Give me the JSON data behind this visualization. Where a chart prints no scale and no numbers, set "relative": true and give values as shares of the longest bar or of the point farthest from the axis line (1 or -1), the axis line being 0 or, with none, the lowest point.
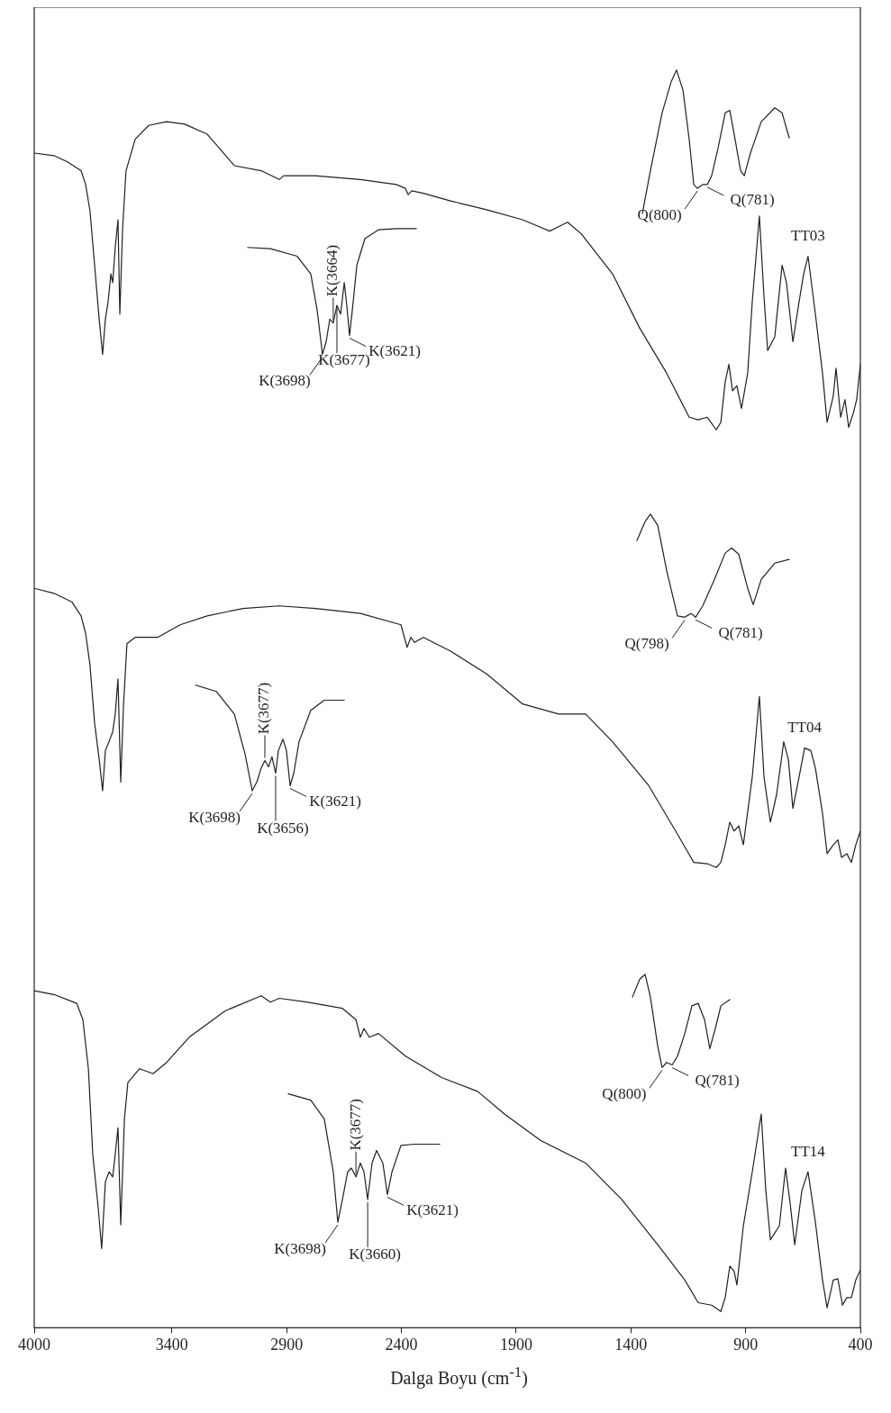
{
  "chart_data": {
    "type": "line",
    "relative": true,
    "xlabel": "Dalga Boyu (cm$^{-1}$)",
    "xlim": [
      4000,
      400
    ],
    "xticks": [
      4000,
      3400,
      2900,
      2400,
      1900,
      1400,
      900,
      400
    ],
    "grid": false,
    "legend": false,
    "marker": "none",
    "line_style": "solid",
    "series": [
      {
        "name": "TT03",
        "color": "#231f20",
        "x": [
          4000,
          3914,
          3855,
          3796,
          3776,
          3757,
          3737,
          3717,
          3702,
          3690,
          3678,
          3666,
          3658,
          3647,
          3635,
          3627,
          3615,
          3600,
          3560,
          3501,
          3423,
          3344,
          3246,
          3128,
          3011,
          2932,
          2913,
          2854,
          2775,
          2579,
          2422,
          2383,
          2371,
          2355,
          2304,
          2186,
          2029,
          1872,
          1754,
          1676,
          1617,
          1480,
          1362,
          1244,
          1146,
          1107,
          1067,
          1028,
          1008,
          989,
          973,
          957,
          938,
          918,
          891,
          871,
          840,
          820,
          804,
          773,
          741,
          722,
          694,
          667,
          647,
          628,
          596,
          565,
          545,
          518,
          506,
          486,
          467,
          451,
          431,
          416,
          400
        ],
        "values": [
          0.934,
          0.932,
          0.927,
          0.92,
          0.909,
          0.888,
          0.845,
          0.802,
          0.774,
          0.802,
          0.816,
          0.838,
          0.831,
          0.859,
          0.881,
          0.806,
          0.874,
          0.92,
          0.945,
          0.956,
          0.959,
          0.957,
          0.949,
          0.924,
          0.92,
          0.913,
          0.916,
          0.916,
          0.916,
          0.913,
          0.909,
          0.906,
          0.901,
          0.904,
          0.902,
          0.896,
          0.889,
          0.881,
          0.872,
          0.879,
          0.87,
          0.838,
          0.795,
          0.759,
          0.724,
          0.722,
          0.724,
          0.714,
          0.72,
          0.752,
          0.766,
          0.745,
          0.749,
          0.731,
          0.759,
          0.816,
          0.884,
          0.82,
          0.777,
          0.788,
          0.845,
          0.831,
          0.784,
          0.816,
          0.838,
          0.852,
          0.806,
          0.759,
          0.72,
          0.741,
          0.763,
          0.724,
          0.738,
          0.716,
          0.727,
          0.738,
          0.766
        ]
      },
      {
        "color": "#231f20",
        "x": [
          1350,
          1315,
          1264,
          1224,
          1201,
          1173,
          1146,
          1126,
          1110,
          1087,
          1067,
          1048,
          1020,
          989,
          969,
          946,
          922,
          906,
          879,
          832,
          773,
          741,
          710
        ],
        "values": [
          0.886,
          0.92,
          0.966,
          0.991,
          1.0,
          0.984,
          0.945,
          0.909,
          0.906,
          0.909,
          0.909,
          0.916,
          0.938,
          0.966,
          0.968,
          0.945,
          0.92,
          0.916,
          0.934,
          0.959,
          0.97,
          0.966,
          0.946
        ]
      },
      {
        "color": "#231f20",
        "x": [
          3070,
          2971,
          2854,
          2795,
          2767,
          2744,
          2728,
          2712,
          2697,
          2681,
          2665,
          2649,
          2638,
          2626,
          2614,
          2594,
          2559,
          2500,
          2422,
          2335
        ],
        "values": [
          0.859,
          0.858,
          0.852,
          0.838,
          0.809,
          0.774,
          0.784,
          0.802,
          0.799,
          0.813,
          0.806,
          0.831,
          0.813,
          0.789,
          0.809,
          0.845,
          0.866,
          0.873,
          0.874,
          0.874
        ]
      },
      {
        "name": "TT04",
        "color": "#231f20",
        "x": [
          4000,
          3914,
          3835,
          3796,
          3776,
          3757,
          3737,
          3717,
          3702,
          3690,
          3674,
          3658,
          3647,
          3635,
          3623,
          3611,
          3596,
          3560,
          3462,
          3364,
          3246,
          3089,
          2932,
          2775,
          2579,
          2402,
          2375,
          2359,
          2343,
          2304,
          2186,
          2029,
          1872,
          1715,
          1597,
          1480,
          1322,
          1205,
          1126,
          1067,
          1028,
          1008,
          989,
          969,
          950,
          930,
          910,
          871,
          840,
          820,
          792,
          765,
          734,
          714,
          694,
          667,
          643,
          616,
          596,
          565,
          545,
          518,
          498,
          482,
          459,
          439,
          420,
          400
        ],
        "values": [
          0.588,
          0.584,
          0.577,
          0.566,
          0.552,
          0.527,
          0.481,
          0.452,
          0.427,
          0.459,
          0.466,
          0.474,
          0.488,
          0.516,
          0.434,
          0.495,
          0.544,
          0.549,
          0.549,
          0.559,
          0.566,
          0.572,
          0.574,
          0.572,
          0.568,
          0.559,
          0.541,
          0.549,
          0.545,
          0.549,
          0.538,
          0.52,
          0.496,
          0.488,
          0.488,
          0.466,
          0.431,
          0.395,
          0.37,
          0.369,
          0.366,
          0.37,
          0.384,
          0.402,
          0.395,
          0.399,
          0.384,
          0.438,
          0.502,
          0.438,
          0.402,
          0.424,
          0.466,
          0.452,
          0.413,
          0.438,
          0.461,
          0.459,
          0.445,
          0.409,
          0.377,
          0.384,
          0.388,
          0.374,
          0.377,
          0.37,
          0.384,
          0.395
        ]
      },
      {
        "color": "#231f20",
        "x": [
          1374,
          1338,
          1315,
          1283,
          1244,
          1197,
          1165,
          1138,
          1118,
          1087,
          1036,
          989,
          961,
          930,
          891,
          867,
          832,
          773,
          710
        ],
        "values": [
          0.626,
          0.641,
          0.647,
          0.638,
          0.602,
          0.566,
          0.565,
          0.568,
          0.565,
          0.574,
          0.595,
          0.616,
          0.62,
          0.615,
          0.588,
          0.575,
          0.595,
          0.608,
          0.611
        ]
      },
      {
        "color": "#231f20",
        "x": [
          3297,
          3207,
          3128,
          3081,
          3050,
          3030,
          3011,
          2995,
          2979,
          2964,
          2948,
          2936,
          2916,
          2901,
          2885,
          2869,
          2846,
          2795,
          2736,
          2649
        ],
        "values": [
          0.511,
          0.506,
          0.488,
          0.456,
          0.427,
          0.434,
          0.445,
          0.451,
          0.446,
          0.454,
          0.441,
          0.459,
          0.468,
          0.459,
          0.431,
          0.441,
          0.466,
          0.491,
          0.499,
          0.499
        ]
      },
      {
        "name": "TT14",
        "color": "#231f20",
        "x": [
          4000,
          3914,
          3815,
          3788,
          3764,
          3745,
          3721,
          3706,
          3690,
          3674,
          3658,
          3647,
          3635,
          3623,
          3607,
          3592,
          3541,
          3482,
          3423,
          3325,
          3168,
          3011,
          2971,
          2932,
          2814,
          2657,
          2598,
          2579,
          2563,
          2540,
          2500,
          2382,
          2225,
          2068,
          1951,
          1794,
          1597,
          1440,
          1283,
          1165,
          1107,
          1048,
          1008,
          989,
          969,
          950,
          938,
          910,
          871,
          832,
          812,
          792,
          753,
          726,
          706,
          686,
          655,
          628,
          596,
          565,
          545,
          518,
          498,
          478,
          459,
          439,
          420,
          400
        ],
        "values": [
          0.268,
          0.265,
          0.258,
          0.245,
          0.206,
          0.138,
          0.095,
          0.063,
          0.116,
          0.124,
          0.12,
          0.138,
          0.159,
          0.082,
          0.166,
          0.195,
          0.206,
          0.202,
          0.211,
          0.231,
          0.252,
          0.264,
          0.259,
          0.262,
          0.259,
          0.254,
          0.245,
          0.231,
          0.238,
          0.231,
          0.234,
          0.216,
          0.199,
          0.188,
          0.17,
          0.149,
          0.131,
          0.102,
          0.066,
          0.038,
          0.02,
          0.018,
          0.013,
          0.024,
          0.049,
          0.045,
          0.034,
          0.081,
          0.124,
          0.17,
          0.109,
          0.07,
          0.081,
          0.127,
          0.099,
          0.066,
          0.109,
          0.124,
          0.084,
          0.038,
          0.016,
          0.038,
          0.039,
          0.018,
          0.024,
          0.024,
          0.038,
          0.046
        ]
      },
      {
        "color": "#231f20",
        "x": [
          1393,
          1362,
          1338,
          1315,
          1283,
          1264,
          1244,
          1220,
          1197,
          1165,
          1134,
          1107,
          1079,
          1056,
          1032,
          1008,
          969
        ],
        "values": [
          0.263,
          0.277,
          0.281,
          0.263,
          0.224,
          0.207,
          0.211,
          0.209,
          0.216,
          0.234,
          0.256,
          0.258,
          0.245,
          0.222,
          0.238,
          0.256,
          0.261
        ]
      },
      {
        "color": "#231f20",
        "x": [
          2893,
          2795,
          2736,
          2697,
          2677,
          2657,
          2634,
          2618,
          2598,
          2579,
          2563,
          2547,
          2528,
          2508,
          2481,
          2461,
          2441,
          2402,
          2343,
          2233
        ],
        "values": [
          0.186,
          0.181,
          0.166,
          0.124,
          0.084,
          0.102,
          0.124,
          0.127,
          0.12,
          0.131,
          0.124,
          0.102,
          0.131,
          0.141,
          0.131,
          0.106,
          0.124,
          0.145,
          0.146,
          0.146
        ]
      }
    ],
    "annotations": [
      {
        "text": "Q(800)",
        "x": 1110,
        "y": 0.906
      },
      {
        "text": "Q(781)",
        "x": 1067,
        "y": 0.909
      },
      {
        "text": "K(3664)",
        "x": 2697,
        "y": 0.799
      },
      {
        "text": "K(3698)",
        "x": 2744,
        "y": 0.774
      },
      {
        "text": "K(3677)",
        "x": 2681,
        "y": 0.813
      },
      {
        "text": "K(3621)",
        "x": 2626,
        "y": 0.789
      },
      {
        "text": "Q(798)",
        "x": 1165,
        "y": 0.565
      },
      {
        "text": "Q(781)",
        "x": 1118,
        "y": 0.565
      },
      {
        "text": "K(3677)",
        "x": 2995,
        "y": 0.451
      },
      {
        "text": "K(3698)",
        "x": 3050,
        "y": 0.427
      },
      {
        "text": "K(3656)",
        "x": 2948,
        "y": 0.441
      },
      {
        "text": "K(3621)",
        "x": 2885,
        "y": 0.431
      },
      {
        "text": "Q(800)",
        "x": 1264,
        "y": 0.207
      },
      {
        "text": "Q(781)",
        "x": 1220,
        "y": 0.209
      },
      {
        "text": "K(3677)",
        "x": 2598,
        "y": 0.12
      },
      {
        "text": "K(3698)",
        "x": 2677,
        "y": 0.084
      },
      {
        "text": "K(3660)",
        "x": 2547,
        "y": 0.102
      },
      {
        "text": "K(3621)",
        "x": 2461,
        "y": 0.106
      }
    ]
  }
}
